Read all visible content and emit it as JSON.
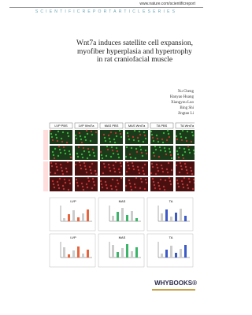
{
  "header": {
    "url": "www.nature.com/scientificreport",
    "series": "SCIENTIFICREPORTARTICLESERIES"
  },
  "title": "Wnt7a induces satellite cell expansion, myofiber hyperplasia and hypertrophy in rat craniofacial muscle",
  "authors": [
    "Xu Cheng",
    "Hanyao Huang",
    "Xiangyou Luo",
    "Bing Shi",
    "Jingtao Li"
  ],
  "figure": {
    "columns": [
      "LVP PBS",
      "LVP Wnt7a",
      "MAS PBS",
      "MAS Wnt7a",
      "TA PBS",
      "TA Wnt7a"
    ],
    "panels": [
      "LVP",
      "MAS",
      "TA",
      "LVP",
      "MAS",
      "TA"
    ]
  },
  "publisher": "WHYBOOKS®"
}
